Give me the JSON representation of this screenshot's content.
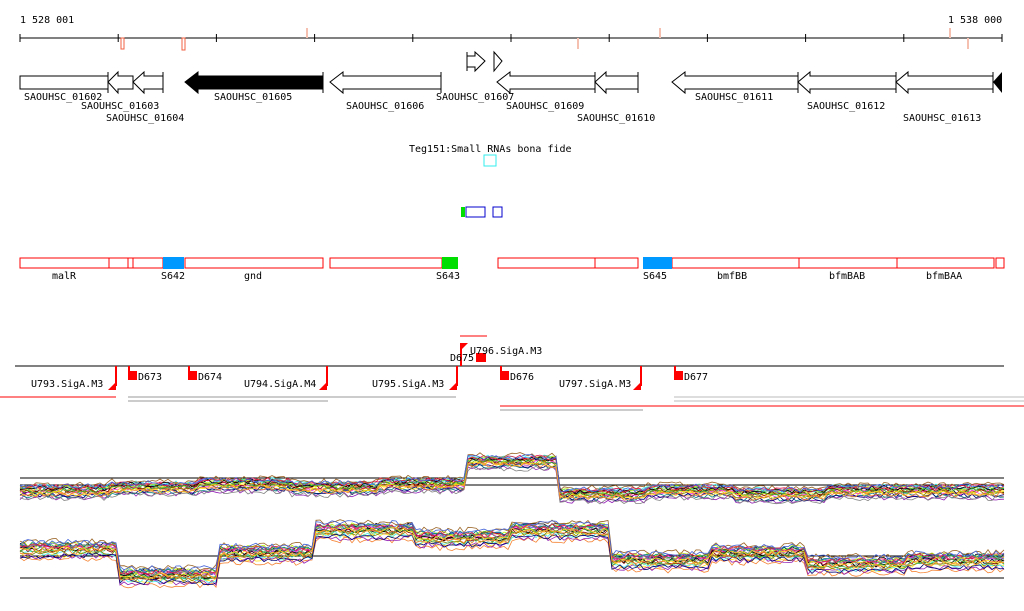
{
  "ruler": {
    "start_label": "1 528 001",
    "end_label": "1 538 000"
  },
  "genes": [
    {
      "id": "SAOUHSC_01602",
      "type": "box"
    },
    {
      "id": "SAOUHSC_01603",
      "type": "left"
    },
    {
      "id": "SAOUHSC_01604",
      "type": "left"
    },
    {
      "id": "SAOUHSC_01605",
      "type": "left-filled"
    },
    {
      "id": "SAOUHSC_01606",
      "type": "left"
    },
    {
      "id": "SAOUHSC_01607",
      "type": "right"
    },
    {
      "id": "SAOUHSC_01609",
      "type": "left"
    },
    {
      "id": "SAOUHSC_01610",
      "type": "left"
    },
    {
      "id": "SAOUHSC_01611",
      "type": "left"
    },
    {
      "id": "SAOUHSC_01612",
      "type": "left"
    },
    {
      "id": "SAOUHSC_01613",
      "type": "left"
    }
  ],
  "small_rna": {
    "label": "Teg151:Small RNAs bona fide"
  },
  "segments": {
    "labels": [
      "malR",
      "S642",
      "gnd",
      "S643",
      "S645",
      "bmfBB",
      "bfmBAB",
      "bfmBAA"
    ]
  },
  "promoters": {
    "labels": [
      "U793.SigA.M3",
      "D673",
      "D674",
      "U794.SigA.M4",
      "U795.SigA.M3",
      "D675",
      "U796.SigA.M3",
      "D676",
      "U797.SigA.M3",
      "D677"
    ]
  },
  "colors": {
    "red": "#ff0000",
    "blue": "#0099ff",
    "green": "#00dd00",
    "cyan": "#33eeee",
    "navy": "#0000cc"
  },
  "expression": {
    "top_levels": [
      0.45,
      0.5,
      0.55,
      0.5,
      0.55,
      0.9,
      0.4,
      0.45,
      0.4,
      0.45,
      0.45
    ],
    "bottom_levels": [
      0.6,
      0.25,
      0.55,
      0.85,
      0.75,
      0.85,
      0.45,
      0.55,
      0.4,
      0.45
    ]
  }
}
